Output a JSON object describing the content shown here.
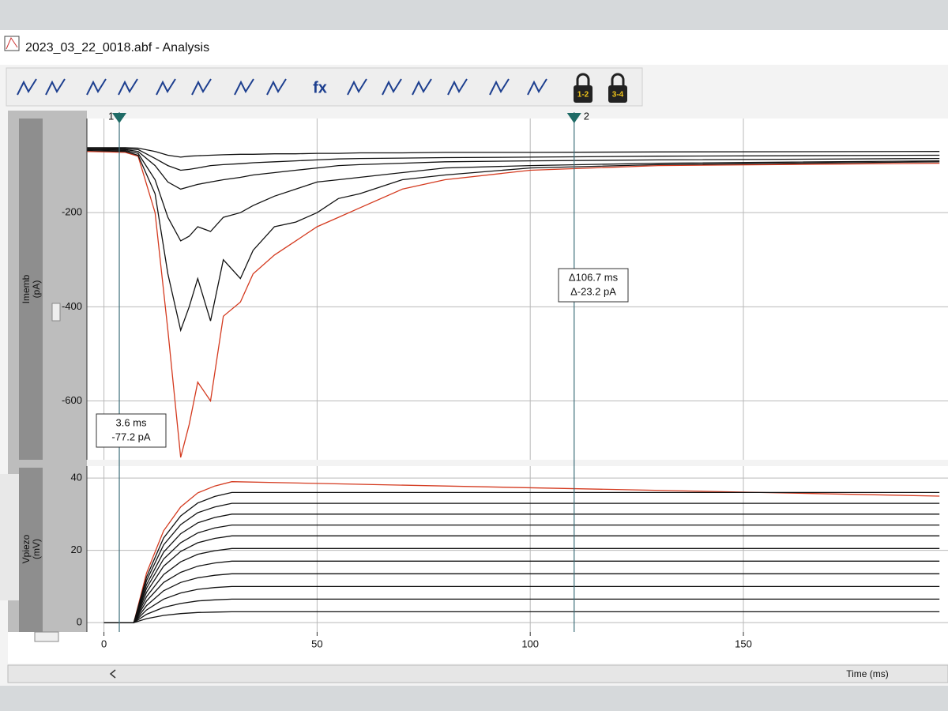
{
  "window": {
    "title": "2023_03_22_0018.abf - Analysis",
    "toolbar": [
      "fx",
      "1-2",
      "3-4"
    ]
  },
  "cursors": [
    {
      "label": "1",
      "x": 3.6,
      "readout": [
        "3.6 ms",
        "-77.2 pA"
      ]
    },
    {
      "label": "2",
      "x": 110.3,
      "readout": [
        "Δ106.7 ms",
        "Δ-23.2 pA"
      ]
    }
  ],
  "chart_data": [
    {
      "type": "line",
      "ylabel": [
        "Imemb",
        "(pA)"
      ],
      "x": [
        -4,
        5,
        8,
        12,
        15,
        18,
        20,
        22,
        25,
        28,
        32,
        35,
        40,
        45,
        50,
        55,
        60,
        70,
        80,
        100,
        130,
        196
      ],
      "series": [
        {
          "color": "#d43a1f",
          "values": [
            -70,
            -72,
            -80,
            -200,
            -450,
            -720,
            -650,
            -560,
            -600,
            -420,
            -390,
            -330,
            -290,
            -260,
            -230,
            -210,
            -190,
            -150,
            -130,
            -110,
            -100,
            -95
          ]
        },
        {
          "color": "#111111",
          "values": [
            -68,
            -70,
            -78,
            -160,
            -330,
            -450,
            -400,
            -340,
            -430,
            -300,
            -340,
            -280,
            -230,
            -220,
            -200,
            -170,
            -160,
            -130,
            -120,
            -105,
            -98,
            -92
          ]
        },
        {
          "color": "#111111",
          "values": [
            -66,
            -68,
            -74,
            -130,
            -210,
            -260,
            -250,
            -230,
            -240,
            -210,
            -200,
            -185,
            -165,
            -150,
            -135,
            -130,
            -125,
            -115,
            -105,
            -100,
            -95,
            -90
          ]
        },
        {
          "color": "#111111",
          "values": [
            -65,
            -66,
            -70,
            -100,
            -135,
            -150,
            -145,
            -140,
            -135,
            -130,
            -125,
            -120,
            -115,
            -110,
            -105,
            -100,
            -98,
            -95,
            -92,
            -90,
            -88,
            -85
          ]
        },
        {
          "color": "#111111",
          "values": [
            -63,
            -64,
            -66,
            -85,
            -100,
            -110,
            -108,
            -105,
            -100,
            -98,
            -96,
            -94,
            -92,
            -90,
            -88,
            -86,
            -85,
            -84,
            -83,
            -82,
            -80,
            -78
          ]
        },
        {
          "color": "#111111",
          "values": [
            -62,
            -62,
            -63,
            -70,
            -78,
            -82,
            -80,
            -79,
            -78,
            -77,
            -76,
            -76,
            -75,
            -75,
            -74,
            -74,
            -73,
            -73,
            -72,
            -72,
            -71,
            -70
          ]
        }
      ],
      "xlim": [
        -4,
        198
      ],
      "ylim": [
        -725,
        0
      ],
      "yticks": [
        -200,
        -400,
        -600
      ],
      "grid": true
    },
    {
      "type": "line",
      "ylabel": [
        "Vpiezo",
        "(mV)"
      ],
      "xlabel": "Time (ms)",
      "x": [
        0,
        7,
        10,
        14,
        18,
        22,
        26,
        30,
        196
      ],
      "series": [
        {
          "color": "#d43a1f",
          "values": [
            0,
            0,
            13.7,
            25.4,
            32,
            35.9,
            37.8,
            39,
            35
          ]
        },
        {
          "color": "#111111",
          "values": [
            0,
            0,
            12.6,
            23.4,
            29.5,
            33.1,
            34.9,
            36,
            36
          ]
        },
        {
          "color": "#111111",
          "values": [
            0,
            0,
            11.6,
            21.5,
            27.1,
            30.4,
            32,
            33,
            33
          ]
        },
        {
          "color": "#111111",
          "values": [
            0,
            0,
            10.5,
            19.5,
            24.6,
            27.6,
            29.1,
            30,
            30
          ]
        },
        {
          "color": "#111111",
          "values": [
            0,
            0,
            9.5,
            17.6,
            22.1,
            24.8,
            26.2,
            27,
            27
          ]
        },
        {
          "color": "#111111",
          "values": [
            0,
            0,
            8.4,
            15.6,
            19.7,
            22.1,
            23.3,
            24,
            24
          ]
        },
        {
          "color": "#111111",
          "values": [
            0,
            0,
            7.2,
            13.3,
            16.8,
            18.9,
            19.9,
            20.5,
            20.5
          ]
        },
        {
          "color": "#111111",
          "values": [
            0,
            0,
            6,
            11.1,
            13.9,
            15.6,
            16.5,
            17,
            17
          ]
        },
        {
          "color": "#111111",
          "values": [
            0,
            0,
            4.7,
            8.8,
            11.1,
            12.4,
            13.1,
            13.5,
            13.5
          ]
        },
        {
          "color": "#111111",
          "values": [
            0,
            0,
            3.5,
            6.5,
            8.2,
            9.2,
            9.7,
            10,
            10
          ]
        },
        {
          "color": "#111111",
          "values": [
            0,
            0,
            2.3,
            4.2,
            5.3,
            6,
            6.3,
            6.5,
            6.5
          ]
        },
        {
          "color": "#111111",
          "values": [
            0,
            0,
            1.1,
            2,
            2.5,
            2.8,
            2.9,
            3,
            3
          ]
        }
      ],
      "xlim": [
        -4,
        198
      ],
      "ylim": [
        -2.6,
        43.3
      ],
      "xticks": [
        0,
        50,
        100,
        150
      ],
      "yticks": [
        0,
        20,
        40
      ],
      "grid": true
    }
  ]
}
